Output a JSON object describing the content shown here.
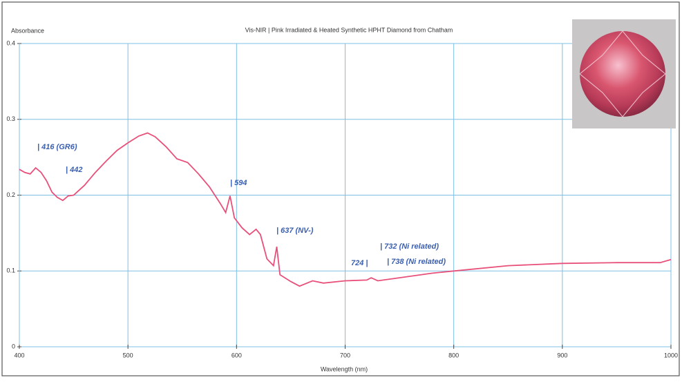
{
  "chart_data": {
    "type": "line",
    "title": "Vis-NIR | Pink Irradiated & Heated Synthetic HPHT Diamond from Chatham",
    "y_label": "Absorbance",
    "x_label": "Wavelength (nm)",
    "x": [
      400,
      405,
      410,
      415,
      420,
      425,
      430,
      435,
      440,
      445,
      450,
      460,
      470,
      480,
      490,
      500,
      510,
      518,
      525,
      535,
      545,
      555,
      565,
      575,
      585,
      590,
      594,
      598,
      605,
      612,
      618,
      622,
      628,
      634,
      637,
      640,
      650,
      658,
      670,
      680,
      700,
      720,
      724,
      730,
      750,
      780,
      800,
      850,
      900,
      950,
      990,
      1000
    ],
    "values": [
      0.234,
      0.23,
      0.228,
      0.236,
      0.23,
      0.219,
      0.204,
      0.197,
      0.193,
      0.199,
      0.2,
      0.213,
      0.23,
      0.245,
      0.259,
      0.269,
      0.278,
      0.282,
      0.277,
      0.264,
      0.248,
      0.243,
      0.228,
      0.211,
      0.189,
      0.177,
      0.199,
      0.17,
      0.157,
      0.148,
      0.155,
      0.148,
      0.116,
      0.107,
      0.132,
      0.095,
      0.086,
      0.08,
      0.087,
      0.084,
      0.087,
      0.088,
      0.091,
      0.087,
      0.091,
      0.097,
      0.1,
      0.107,
      0.11,
      0.111,
      0.111,
      0.115
    ],
    "color": "#e8507a",
    "xlim": [
      400,
      1000
    ],
    "xticks": [
      400,
      500,
      600,
      700,
      800,
      900,
      1000
    ],
    "ylim": [
      0,
      0.4
    ],
    "yticks": [
      0,
      0.1,
      0.2,
      0.3,
      0.4
    ],
    "grid": true,
    "grid_color": "#7cc0e6",
    "annotations": [
      "| 416 (GR6)",
      "| 442",
      "| 594",
      "| 637 (NV-)",
      "| 732 (Ni related)",
      "724 |",
      "| 738 (Ni related)"
    ],
    "annotation_color": "#3a5fb0"
  }
}
